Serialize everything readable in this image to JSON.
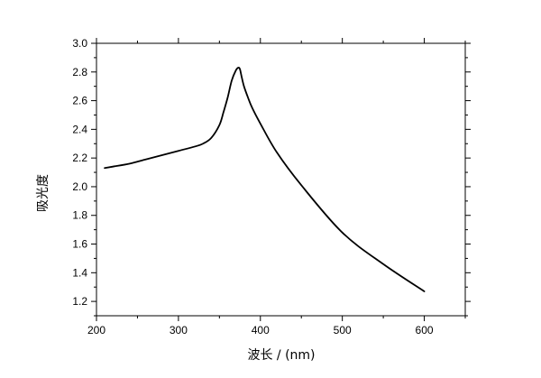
{
  "chart_data": {
    "type": "line",
    "xlabel": "波长 / (nm)",
    "ylabel": "吸光度",
    "xlim": [
      200,
      650
    ],
    "ylim": [
      1.1,
      3.0
    ],
    "xticks": [
      "200",
      "300",
      "400",
      "500",
      "600"
    ],
    "yticks": [
      "1.2",
      "1.4",
      "1.6",
      "1.8",
      "2.0",
      "2.2",
      "2.4",
      "2.6",
      "2.8",
      "3.0"
    ],
    "grid": false,
    "color": "#000000",
    "series": [
      {
        "x": [
          210,
          220,
          240,
          260,
          280,
          300,
          320,
          330,
          340,
          350,
          355,
          360,
          365,
          370,
          373,
          375,
          377,
          380,
          385,
          390,
          400,
          420,
          450,
          500,
          550,
          600
        ],
        "y": [
          2.13,
          2.14,
          2.16,
          2.19,
          2.22,
          2.25,
          2.28,
          2.3,
          2.34,
          2.43,
          2.52,
          2.62,
          2.74,
          2.81,
          2.83,
          2.82,
          2.77,
          2.7,
          2.62,
          2.55,
          2.44,
          2.24,
          2.01,
          1.68,
          1.46,
          1.27
        ]
      }
    ]
  }
}
